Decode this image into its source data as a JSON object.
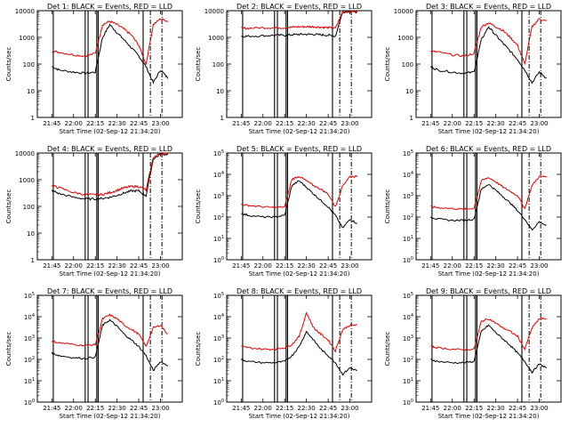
{
  "colors": {
    "events": "#000000",
    "lld": "#e00000",
    "axes": "#000000",
    "background": "#ffffff"
  },
  "x_tick_labels": [
    "21:45",
    "22:00",
    "22:15",
    "22:30",
    "22:45",
    "23:00"
  ],
  "x_label": "Start Time (02-Sep-12 21:34:20)",
  "y_label": "Counts/sec",
  "chart_data": [
    {
      "type": "line",
      "title": "Det 1: BLACK = Events, RED = LLD",
      "ylabel": "Counts/sec",
      "xlabel": "Start Time (02-Sep-12 21:34:20)",
      "log_y": true,
      "ylim": [
        1,
        10000
      ],
      "y_ticks": [
        "1",
        "10",
        "100",
        "1000",
        "10000"
      ],
      "x_ticks": [
        "21:45",
        "22:00",
        "22:15",
        "22:30",
        "22:45",
        "23:00"
      ],
      "x": [
        "21:45",
        "21:50",
        "22:00",
        "22:08",
        "22:15",
        "22:20",
        "22:25",
        "22:30",
        "22:35",
        "22:40",
        "22:45",
        "22:50",
        "22:55",
        "23:00",
        "23:05"
      ],
      "series": [
        {
          "name": "Events",
          "values": [
            80,
            60,
            50,
            45,
            50,
            1000,
            3000,
            1500,
            800,
            400,
            200,
            80,
            20,
            60,
            30
          ]
        },
        {
          "name": "LLD",
          "values": [
            300,
            280,
            220,
            200,
            250,
            3000,
            4000,
            3000,
            2000,
            1200,
            500,
            100,
            3000,
            5000,
            4000
          ]
        }
      ]
    },
    {
      "type": "line",
      "title": "Det 2: BLACK = Events, RED = LLD",
      "ylabel": "Counts/sec",
      "xlabel": "Start Time (02-Sep-12 21:34:20)",
      "log_y": true,
      "ylim": [
        1,
        10000
      ],
      "y_ticks": [
        "1",
        "10",
        "100",
        "1000",
        "10000"
      ],
      "x_ticks": [
        "21:45",
        "22:00",
        "22:15",
        "22:30",
        "22:45",
        "23:00"
      ],
      "x": [
        "21:45",
        "21:50",
        "22:00",
        "22:08",
        "22:15",
        "22:20",
        "22:25",
        "22:30",
        "22:35",
        "22:40",
        "22:45",
        "22:50",
        "22:55",
        "23:00",
        "23:05"
      ],
      "series": [
        {
          "name": "Events",
          "values": [
            1100,
            1100,
            1150,
            1200,
            1200,
            1250,
            1300,
            1300,
            1300,
            1250,
            1200,
            1100,
            9000,
            9500,
            9000
          ]
        },
        {
          "name": "LLD",
          "values": [
            2200,
            2200,
            2300,
            2300,
            2300,
            2400,
            2500,
            2500,
            2500,
            2400,
            2300,
            2200,
            9000,
            9500,
            9500
          ]
        }
      ]
    },
    {
      "type": "line",
      "title": "Det 3: BLACK = Events, RED = LLD",
      "ylabel": "Counts/sec",
      "xlabel": "Start Time (02-Sep-12 21:34:20)",
      "log_y": true,
      "ylim": [
        1,
        10000
      ],
      "y_ticks": [
        "1",
        "10",
        "100",
        "1000",
        "10000"
      ],
      "x_ticks": [
        "21:45",
        "22:00",
        "22:15",
        "22:30",
        "22:45",
        "23:00"
      ],
      "x": [
        "21:45",
        "21:50",
        "22:00",
        "22:08",
        "22:15",
        "22:20",
        "22:25",
        "22:30",
        "22:35",
        "22:40",
        "22:45",
        "22:50",
        "22:55",
        "23:00",
        "23:05"
      ],
      "series": [
        {
          "name": "Events",
          "values": [
            80,
            60,
            50,
            45,
            50,
            800,
            2500,
            1200,
            600,
            300,
            150,
            60,
            20,
            50,
            30
          ]
        },
        {
          "name": "LLD",
          "values": [
            300,
            280,
            220,
            200,
            250,
            2500,
            3500,
            2500,
            1800,
            1000,
            500,
            100,
            2500,
            5000,
            4000
          ]
        }
      ]
    },
    {
      "type": "line",
      "title": "Det 4: BLACK = Events, RED = LLD",
      "ylabel": "Counts/sec",
      "xlabel": "Start Time (02-Sep-12 21:34:20)",
      "log_y": true,
      "ylim": [
        1,
        10000
      ],
      "y_ticks": [
        "1",
        "10",
        "100",
        "1000",
        "10000"
      ],
      "x_ticks": [
        "21:45",
        "22:00",
        "22:15",
        "22:30",
        "22:45",
        "23:00"
      ],
      "x": [
        "21:45",
        "21:50",
        "22:00",
        "22:08",
        "22:15",
        "22:20",
        "22:25",
        "22:30",
        "22:35",
        "22:40",
        "22:45",
        "22:50",
        "22:55",
        "23:00",
        "23:05"
      ],
      "series": [
        {
          "name": "Events",
          "values": [
            400,
            300,
            220,
            190,
            190,
            200,
            220,
            260,
            320,
            380,
            380,
            250,
            6000,
            9000,
            9000
          ]
        },
        {
          "name": "LLD",
          "values": [
            600,
            500,
            330,
            280,
            270,
            280,
            330,
            400,
            500,
            560,
            560,
            400,
            7000,
            9500,
            9500
          ]
        }
      ]
    },
    {
      "type": "line",
      "title": "Det 5: BLACK = Events, RED = LLD",
      "ylabel": "Counts/sec",
      "xlabel": "Start Time (02-Sep-12 21:34:20)",
      "log_y": true,
      "ylim": [
        1,
        100000
      ],
      "y_ticks": [
        "10^0",
        "10^1",
        "10^2",
        "10^3",
        "10^4",
        "10^5"
      ],
      "x_ticks": [
        "21:45",
        "22:00",
        "22:15",
        "22:30",
        "22:45",
        "23:00"
      ],
      "x": [
        "21:45",
        "21:50",
        "22:00",
        "22:08",
        "22:15",
        "22:20",
        "22:25",
        "22:30",
        "22:35",
        "22:40",
        "22:45",
        "22:50",
        "22:55",
        "23:00",
        "23:05"
      ],
      "series": [
        {
          "name": "Events",
          "values": [
            150,
            120,
            100,
            100,
            120,
            3000,
            5000,
            2500,
            1200,
            600,
            300,
            120,
            30,
            80,
            50
          ]
        },
        {
          "name": "LLD",
          "values": [
            400,
            350,
            300,
            280,
            300,
            6000,
            8000,
            5000,
            3000,
            2000,
            1200,
            300,
            3000,
            8000,
            8000
          ]
        }
      ]
    },
    {
      "type": "line",
      "title": "Det 6: BLACK = Events, RED = LLD",
      "ylabel": "Counts/sec",
      "xlabel": "Start Time (02-Sep-12 21:34:20)",
      "log_y": true,
      "ylim": [
        1,
        100000
      ],
      "y_ticks": [
        "10^0",
        "10^1",
        "10^2",
        "10^3",
        "10^4",
        "10^5"
      ],
      "x_ticks": [
        "21:45",
        "22:00",
        "22:15",
        "22:30",
        "22:45",
        "23:00"
      ],
      "x": [
        "21:45",
        "21:50",
        "22:00",
        "22:08",
        "22:15",
        "22:20",
        "22:25",
        "22:30",
        "22:35",
        "22:40",
        "22:45",
        "22:50",
        "22:55",
        "23:00",
        "23:05"
      ],
      "series": [
        {
          "name": "Events",
          "values": [
            100,
            80,
            70,
            70,
            80,
            2000,
            3500,
            1800,
            900,
            450,
            200,
            80,
            25,
            60,
            40
          ]
        },
        {
          "name": "LLD",
          "values": [
            300,
            280,
            250,
            230,
            260,
            5000,
            7000,
            4500,
            2500,
            1600,
            1000,
            250,
            3000,
            8000,
            8000
          ]
        }
      ]
    },
    {
      "type": "line",
      "title": "Det 7: BLACK = Events, RED = LLD",
      "ylabel": "Counts/sec",
      "xlabel": "Start Time (02-Sep-12 21:34:20)",
      "log_y": true,
      "ylim": [
        1,
        100000
      ],
      "y_ticks": [
        "10^0",
        "10^1",
        "10^2",
        "10^3",
        "10^4",
        "10^5"
      ],
      "x_ticks": [
        "21:45",
        "22:00",
        "22:15",
        "22:30",
        "22:45",
        "23:00"
      ],
      "x": [
        "21:45",
        "21:50",
        "22:00",
        "22:08",
        "22:15",
        "22:20",
        "22:25",
        "22:30",
        "22:35",
        "22:40",
        "22:45",
        "22:50",
        "22:55",
        "23:00",
        "23:05"
      ],
      "series": [
        {
          "name": "Events",
          "values": [
            200,
            150,
            120,
            110,
            130,
            4000,
            7000,
            3500,
            1500,
            800,
            400,
            150,
            30,
            80,
            50
          ]
        },
        {
          "name": "LLD",
          "values": [
            700,
            600,
            500,
            450,
            500,
            8000,
            12000,
            8000,
            4000,
            2500,
            1500,
            400,
            3000,
            4000,
            1500
          ]
        }
      ]
    },
    {
      "type": "line",
      "title": "Det 8: BLACK = Events, RED = LLD",
      "ylabel": "Counts/sec",
      "xlabel": "Start Time (02-Sep-12 21:34:20)",
      "log_y": true,
      "ylim": [
        1,
        100000
      ],
      "y_ticks": [
        "10^0",
        "10^1",
        "10^2",
        "10^3",
        "10^4",
        "10^5"
      ],
      "x_ticks": [
        "21:45",
        "22:00",
        "22:15",
        "22:30",
        "22:45",
        "23:00"
      ],
      "x": [
        "21:45",
        "21:50",
        "22:00",
        "22:08",
        "22:15",
        "22:20",
        "22:25",
        "22:30",
        "22:35",
        "22:40",
        "22:45",
        "22:50",
        "22:55",
        "23:00",
        "23:05"
      ],
      "series": [
        {
          "name": "Events",
          "values": [
            100,
            80,
            70,
            70,
            80,
            150,
            400,
            2000,
            800,
            300,
            150,
            70,
            20,
            40,
            30
          ]
        },
        {
          "name": "LLD",
          "values": [
            400,
            350,
            300,
            300,
            350,
            500,
            1200,
            15000,
            3000,
            1500,
            800,
            250,
            2500,
            4000,
            4000
          ]
        }
      ]
    },
    {
      "type": "line",
      "title": "Det 9: BLACK = Events, RED = LLD",
      "ylabel": "Counts/sec",
      "xlabel": "Start Time (02-Sep-12 21:34:20)",
      "log_y": true,
      "ylim": [
        1,
        100000
      ],
      "y_ticks": [
        "10^0",
        "10^1",
        "10^2",
        "10^3",
        "10^4",
        "10^5"
      ],
      "x_ticks": [
        "21:45",
        "22:00",
        "22:15",
        "22:30",
        "22:45",
        "23:00"
      ],
      "x": [
        "21:45",
        "21:50",
        "22:00",
        "22:08",
        "22:15",
        "22:20",
        "22:25",
        "22:30",
        "22:35",
        "22:40",
        "22:45",
        "22:50",
        "22:55",
        "23:00",
        "23:05"
      ],
      "series": [
        {
          "name": "Events",
          "values": [
            100,
            80,
            70,
            70,
            80,
            2000,
            4000,
            1800,
            900,
            450,
            200,
            80,
            25,
            60,
            40
          ]
        },
        {
          "name": "LLD",
          "values": [
            400,
            350,
            300,
            280,
            300,
            6000,
            8000,
            5000,
            3000,
            2000,
            1200,
            300,
            3000,
            8000,
            8000
          ]
        }
      ]
    }
  ]
}
